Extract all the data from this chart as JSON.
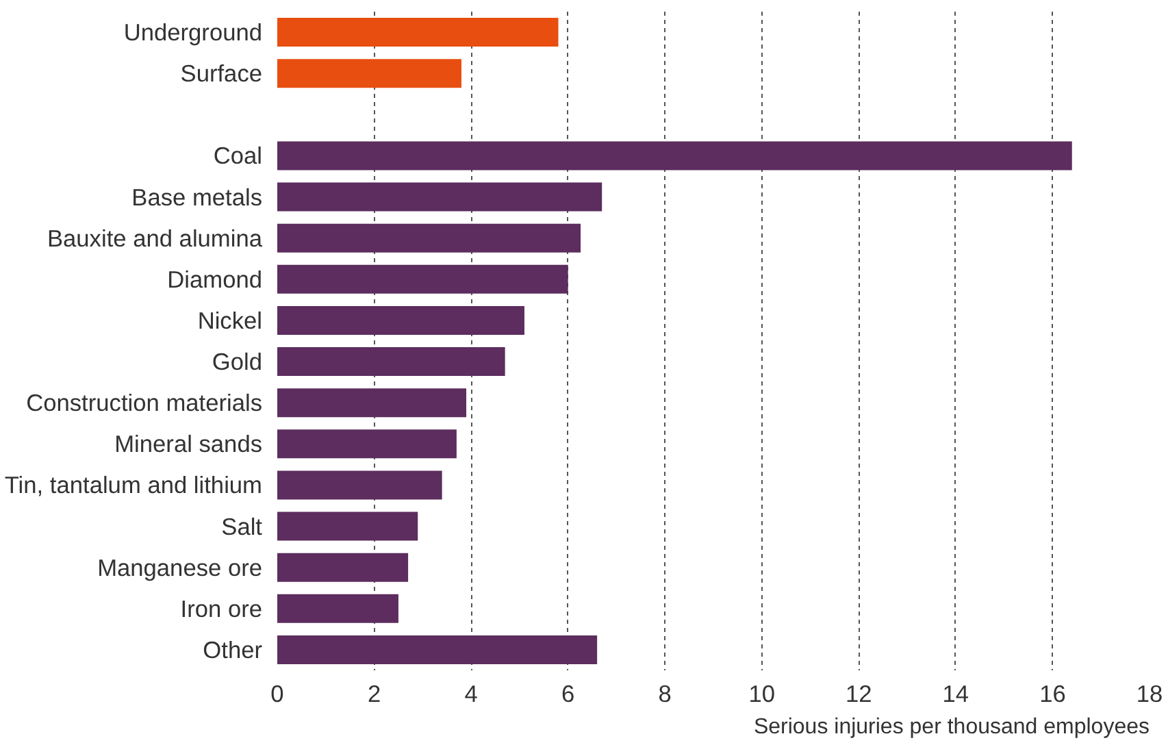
{
  "chart_data": {
    "type": "bar",
    "orientation": "horizontal",
    "xlabel": "Serious injuries per thousand employees",
    "categories": [
      "Underground",
      "Surface",
      null,
      "Coal",
      "Base metals",
      "Bauxite and alumina",
      "Diamond",
      "Nickel",
      "Gold",
      "Construction materials",
      "Mineral sands",
      "Tin, tantalum and lithium",
      "Salt",
      "Manganese ore",
      "Iron ore",
      "Other"
    ],
    "values": [
      5.8,
      3.8,
      null,
      16.4,
      6.7,
      6.26,
      6.0,
      5.1,
      4.7,
      3.9,
      3.7,
      3.4,
      2.9,
      2.7,
      2.5,
      6.6
    ],
    "colors": [
      "#e84e0f",
      "#e84e0f",
      null,
      "#5c2d5e",
      "#5c2d5e",
      "#5c2d5e",
      "#5c2d5e",
      "#5c2d5e",
      "#5c2d5e",
      "#5c2d5e",
      "#5c2d5e",
      "#5c2d5e",
      "#5c2d5e",
      "#5c2d5e",
      "#5c2d5e",
      "#5c2d5e"
    ],
    "xlim": [
      0,
      18
    ],
    "xticks": [
      0,
      2,
      4,
      6,
      8,
      10,
      12,
      14,
      16,
      18
    ],
    "grid": "x"
  }
}
